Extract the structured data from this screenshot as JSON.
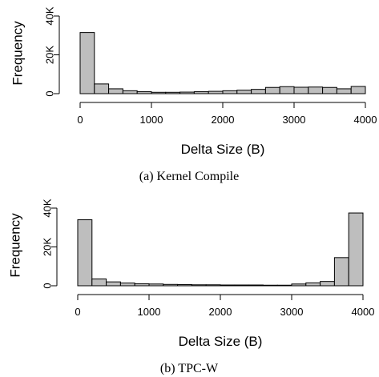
{
  "chart_data": [
    {
      "type": "histogram",
      "xlabel": "Delta Size (B)",
      "ylabel": "Frequency",
      "caption": "(a)  Kernel Compile",
      "xlim": [
        0,
        4000
      ],
      "ylim": [
        0,
        40000
      ],
      "xticks": [
        0,
        1000,
        2000,
        3000,
        4000
      ],
      "yticks": [
        0,
        20000,
        40000
      ],
      "ytick_labels": [
        "0",
        "20K",
        "40K"
      ],
      "bin_width": 200,
      "bins": [
        {
          "x0": 0,
          "x1": 200,
          "value": 31500
        },
        {
          "x0": 200,
          "x1": 400,
          "value": 5000
        },
        {
          "x0": 400,
          "x1": 600,
          "value": 2500
        },
        {
          "x0": 600,
          "x1": 800,
          "value": 1500
        },
        {
          "x0": 800,
          "x1": 1000,
          "value": 1000
        },
        {
          "x0": 1000,
          "x1": 1200,
          "value": 700
        },
        {
          "x0": 1200,
          "x1": 1400,
          "value": 700
        },
        {
          "x0": 1400,
          "x1": 1600,
          "value": 800
        },
        {
          "x0": 1600,
          "x1": 1800,
          "value": 1000
        },
        {
          "x0": 1800,
          "x1": 2000,
          "value": 1200
        },
        {
          "x0": 2000,
          "x1": 2200,
          "value": 1500
        },
        {
          "x0": 2200,
          "x1": 2400,
          "value": 1800
        },
        {
          "x0": 2400,
          "x1": 2600,
          "value": 2200
        },
        {
          "x0": 2600,
          "x1": 2800,
          "value": 3200
        },
        {
          "x0": 2800,
          "x1": 3000,
          "value": 3600
        },
        {
          "x0": 3000,
          "x1": 3200,
          "value": 3300
        },
        {
          "x0": 3200,
          "x1": 3400,
          "value": 3400
        },
        {
          "x0": 3400,
          "x1": 3600,
          "value": 3200
        },
        {
          "x0": 3600,
          "x1": 3800,
          "value": 2500
        },
        {
          "x0": 3800,
          "x1": 4000,
          "value": 3700
        }
      ]
    },
    {
      "type": "histogram",
      "xlabel": "Delta Size (B)",
      "ylabel": "Frequency",
      "caption": "(b)  TPC-W",
      "xlim": [
        0,
        4000
      ],
      "ylim": [
        0,
        40000
      ],
      "xticks": [
        0,
        1000,
        2000,
        3000,
        4000
      ],
      "yticks": [
        0,
        20000,
        40000
      ],
      "ytick_labels": [
        "0",
        "20K",
        "40K"
      ],
      "bin_width": 200,
      "bins": [
        {
          "x0": 0,
          "x1": 200,
          "value": 34000
        },
        {
          "x0": 200,
          "x1": 400,
          "value": 3500
        },
        {
          "x0": 400,
          "x1": 600,
          "value": 2000
        },
        {
          "x0": 600,
          "x1": 800,
          "value": 1400
        },
        {
          "x0": 800,
          "x1": 1000,
          "value": 1000
        },
        {
          "x0": 1000,
          "x1": 1200,
          "value": 900
        },
        {
          "x0": 1200,
          "x1": 1400,
          "value": 700
        },
        {
          "x0": 1400,
          "x1": 1600,
          "value": 600
        },
        {
          "x0": 1600,
          "x1": 1800,
          "value": 500
        },
        {
          "x0": 1800,
          "x1": 2000,
          "value": 500
        },
        {
          "x0": 2000,
          "x1": 2200,
          "value": 400
        },
        {
          "x0": 2200,
          "x1": 2400,
          "value": 400
        },
        {
          "x0": 2400,
          "x1": 2600,
          "value": 400
        },
        {
          "x0": 2600,
          "x1": 2800,
          "value": 300
        },
        {
          "x0": 2800,
          "x1": 3000,
          "value": 300
        },
        {
          "x0": 3000,
          "x1": 3200,
          "value": 900
        },
        {
          "x0": 3200,
          "x1": 3400,
          "value": 1500
        },
        {
          "x0": 3400,
          "x1": 3600,
          "value": 2200
        },
        {
          "x0": 3600,
          "x1": 3800,
          "value": 14500
        },
        {
          "x0": 3800,
          "x1": 4000,
          "value": 37500
        }
      ]
    }
  ]
}
